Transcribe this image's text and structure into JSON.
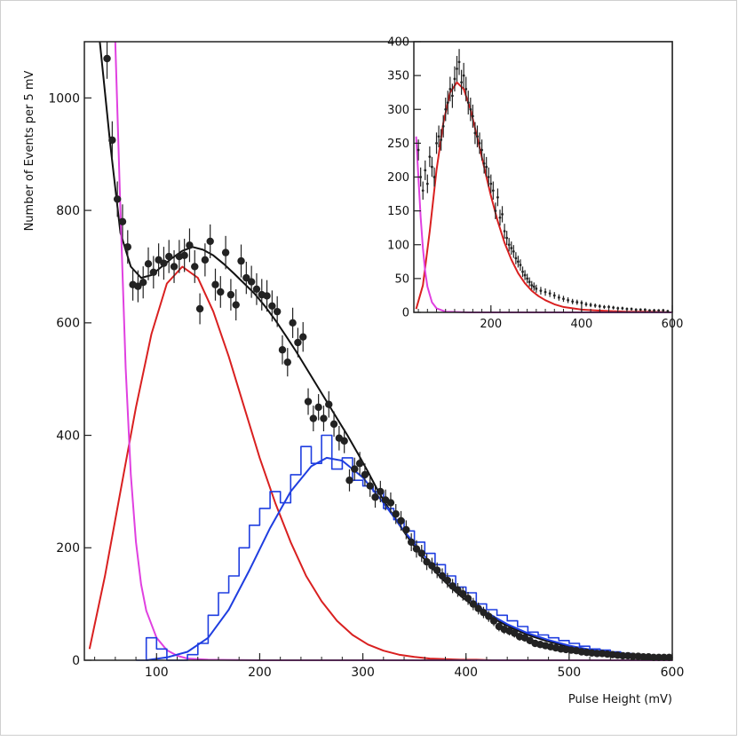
{
  "chart_data": [
    {
      "type": "line",
      "title": "",
      "xlabel": "Pulse Height (mV)",
      "ylabel": "Number of Events per 5 mV",
      "xlim": [
        30,
        600
      ],
      "ylim": [
        0,
        1100
      ],
      "xticks": [
        100,
        200,
        300,
        400,
        500,
        600
      ],
      "yticks": [
        0,
        200,
        400,
        600,
        800,
        1000
      ],
      "ytick_labels": [
        "0",
        "200",
        "400",
        "600",
        "800",
        "1000"
      ],
      "colors": {
        "data": "#222222",
        "total_fit": "#111111",
        "red_fit": "#d92020",
        "magenta_fit": "#e040e0",
        "blue_fit": "#1f3ee0",
        "blue_hist": "#1f3ee0"
      },
      "data_points": {
        "x": [
          52,
          57,
          62,
          67,
          72,
          77,
          82,
          87,
          92,
          97,
          102,
          107,
          112,
          117,
          122,
          127,
          132,
          137,
          142,
          147,
          152,
          157,
          162,
          167,
          172,
          177,
          182,
          187,
          192,
          197,
          202,
          207,
          212,
          217,
          222,
          227,
          232,
          237,
          242,
          247,
          252,
          257,
          262,
          267,
          272,
          277,
          282,
          287,
          292,
          297,
          302,
          307,
          312,
          317,
          322,
          327,
          332,
          337,
          342,
          347,
          352,
          357,
          362,
          367,
          372,
          377,
          382,
          387,
          392,
          397,
          402,
          407,
          412,
          417,
          422,
          427,
          432,
          437,
          442,
          447,
          452,
          457,
          462,
          467,
          472,
          477,
          482,
          487,
          492,
          497,
          502,
          507,
          512,
          517,
          522,
          527,
          532,
          537,
          542,
          547,
          552,
          557,
          562,
          567,
          572,
          577,
          582,
          587,
          592,
          597
        ],
        "y": [
          1070,
          925,
          820,
          780,
          735,
          668,
          665,
          672,
          705,
          690,
          712,
          706,
          718,
          700,
          718,
          720,
          738,
          700,
          625,
          712,
          745,
          668,
          655,
          725,
          650,
          632,
          710,
          680,
          673,
          660,
          650,
          648,
          630,
          620,
          552,
          530,
          600,
          565,
          575,
          460,
          430,
          450,
          430,
          455,
          420,
          395,
          390,
          320,
          340,
          350,
          330,
          310,
          290,
          300,
          285,
          280,
          260,
          248,
          232,
          210,
          198,
          190,
          175,
          168,
          160,
          150,
          142,
          132,
          125,
          118,
          110,
          100,
          92,
          85,
          78,
          70,
          60,
          55,
          52,
          48,
          42,
          40,
          35,
          30,
          28,
          26,
          24,
          22,
          20,
          19,
          18,
          17,
          15,
          14,
          13,
          12,
          12,
          11,
          10,
          9,
          8,
          8,
          7,
          7,
          6,
          6,
          5,
          5,
          5,
          5
        ]
      },
      "series": [
        {
          "name": "",
          "style": "black curve",
          "x": [
            45,
            55,
            65,
            75,
            85,
            95,
            105,
            115,
            125,
            135,
            145,
            155,
            165,
            175,
            185,
            195,
            205,
            215,
            225,
            235,
            245,
            255,
            265,
            275,
            285,
            295,
            305,
            315,
            325,
            335,
            345,
            355,
            365,
            375,
            385,
            395,
            405,
            415,
            425,
            435,
            445,
            455,
            465,
            475,
            485,
            495,
            505,
            515,
            525,
            535,
            545,
            555,
            565,
            575,
            585,
            595
          ],
          "y": [
            1100,
            920,
            760,
            700,
            680,
            685,
            700,
            715,
            728,
            735,
            730,
            720,
            705,
            688,
            670,
            652,
            630,
            605,
            578,
            550,
            520,
            490,
            460,
            430,
            400,
            368,
            335,
            300,
            270,
            242,
            215,
            190,
            168,
            148,
            130,
            114,
            100,
            87,
            76,
            66,
            57,
            49,
            42,
            36,
            31,
            26,
            22,
            19,
            16,
            14,
            12,
            10,
            9,
            8,
            7,
            6
          ]
        },
        {
          "name": "",
          "style": "red curve",
          "x": [
            35,
            50,
            65,
            80,
            95,
            110,
            125,
            140,
            155,
            170,
            185,
            200,
            215,
            230,
            245,
            260,
            275,
            290,
            305,
            320,
            335,
            350,
            365,
            380,
            395,
            410,
            425,
            440
          ],
          "y": [
            20,
            150,
            300,
            450,
            580,
            670,
            700,
            680,
            620,
            540,
            450,
            360,
            280,
            210,
            150,
            105,
            70,
            45,
            28,
            17,
            10,
            6,
            3,
            2,
            1,
            1,
            0,
            0
          ]
        },
        {
          "name": "",
          "style": "magenta curve",
          "x": [
            60,
            65,
            70,
            75,
            80,
            85,
            90,
            100,
            110,
            120,
            130,
            150,
            200,
            300,
            400,
            500,
            600
          ],
          "y": [
            1100,
            800,
            520,
            330,
            210,
            135,
            88,
            40,
            18,
            8,
            3,
            1,
            0,
            0,
            0,
            0,
            0
          ]
        },
        {
          "name": "",
          "style": "blue curve",
          "x": [
            90,
            110,
            130,
            150,
            170,
            190,
            210,
            230,
            250,
            265,
            280,
            300,
            320,
            340,
            360,
            380,
            400,
            420,
            440,
            460,
            480,
            500,
            520,
            540,
            560,
            580,
            600
          ],
          "y": [
            0,
            5,
            15,
            40,
            90,
            160,
            235,
            300,
            345,
            360,
            355,
            325,
            280,
            230,
            185,
            145,
            112,
            85,
            64,
            48,
            36,
            26,
            19,
            14,
            10,
            7,
            5
          ]
        },
        {
          "name": "",
          "style": "blue histogram",
          "x": [
            80,
            90,
            100,
            110,
            120,
            130,
            140,
            150,
            160,
            170,
            180,
            190,
            200,
            210,
            220,
            230,
            240,
            250,
            260,
            270,
            280,
            290,
            300,
            310,
            320,
            330,
            340,
            350,
            360,
            370,
            380,
            390,
            400,
            410,
            420,
            430,
            440,
            450,
            460,
            470,
            480,
            490,
            500,
            510,
            520,
            530,
            540,
            550,
            560,
            570,
            580,
            590
          ],
          "y": [
            0,
            40,
            20,
            0,
            0,
            10,
            30,
            80,
            120,
            150,
            200,
            240,
            270,
            300,
            280,
            330,
            380,
            350,
            400,
            340,
            360,
            320,
            310,
            300,
            270,
            250,
            230,
            210,
            190,
            170,
            150,
            130,
            120,
            100,
            90,
            80,
            70,
            60,
            50,
            45,
            40,
            35,
            30,
            25,
            20,
            18,
            15,
            12,
            10,
            8,
            6,
            5
          ]
        }
      ]
    },
    {
      "type": "line",
      "title": "",
      "xlabel": "",
      "ylabel": "",
      "xlim": [
        30,
        600
      ],
      "ylim": [
        0,
        400
      ],
      "xticks": [
        200,
        400,
        600
      ],
      "yticks": [
        0,
        50,
        100,
        150,
        200,
        250,
        300,
        350,
        400
      ],
      "ytick_labels": [
        "0",
        "50",
        "100",
        "150",
        "200",
        "250",
        "300",
        "350",
        "400"
      ],
      "colors": {
        "data": "#222222",
        "red_fit": "#d92020",
        "magenta_fit": "#e040e0"
      },
      "data_points": {
        "x": [
          40,
          45,
          50,
          55,
          60,
          65,
          70,
          75,
          80,
          85,
          90,
          95,
          100,
          105,
          110,
          115,
          120,
          125,
          130,
          135,
          140,
          145,
          150,
          155,
          160,
          165,
          170,
          175,
          180,
          185,
          190,
          195,
          200,
          205,
          210,
          215,
          220,
          225,
          230,
          235,
          240,
          245,
          250,
          255,
          260,
          265,
          270,
          275,
          280,
          285,
          290,
          295,
          300,
          310,
          320,
          330,
          340,
          350,
          360,
          370,
          380,
          390,
          400,
          410,
          420,
          430,
          440,
          450,
          460,
          470,
          480,
          490,
          500,
          510,
          520,
          530,
          540,
          550,
          560,
          570,
          580,
          590
        ],
        "y": [
          240,
          200,
          180,
          210,
          190,
          230,
          215,
          200,
          250,
          260,
          255,
          275,
          300,
          310,
          330,
          320,
          345,
          360,
          370,
          340,
          350,
          330,
          310,
          300,
          290,
          265,
          260,
          250,
          240,
          220,
          215,
          200,
          190,
          180,
          150,
          170,
          140,
          145,
          120,
          110,
          100,
          95,
          90,
          80,
          75,
          70,
          60,
          55,
          50,
          45,
          40,
          38,
          35,
          32,
          30,
          28,
          25,
          22,
          20,
          18,
          16,
          15,
          14,
          12,
          11,
          10,
          9,
          8,
          8,
          7,
          6,
          6,
          5,
          5,
          4,
          4,
          4,
          3,
          3,
          3,
          3,
          2
        ]
      },
      "series": [
        {
          "name": "",
          "style": "red curve",
          "x": [
            35,
            50,
            65,
            80,
            95,
            110,
            125,
            140,
            155,
            170,
            185,
            200,
            215,
            230,
            245,
            260,
            275,
            290,
            305,
            320,
            340,
            360,
            380,
            400,
            430,
            460,
            500,
            550,
            600
          ],
          "y": [
            5,
            40,
            120,
            210,
            280,
            325,
            340,
            330,
            300,
            258,
            215,
            172,
            135,
            103,
            78,
            58,
            43,
            32,
            24,
            18,
            12,
            8,
            6,
            4,
            3,
            2,
            1,
            1,
            0
          ]
        },
        {
          "name": "",
          "style": "magenta curve",
          "x": [
            35,
            40,
            45,
            50,
            55,
            60,
            70,
            80,
            100,
            150,
            600
          ],
          "y": [
            260,
            200,
            140,
            95,
            60,
            38,
            15,
            6,
            1,
            0,
            0
          ]
        }
      ]
    }
  ]
}
